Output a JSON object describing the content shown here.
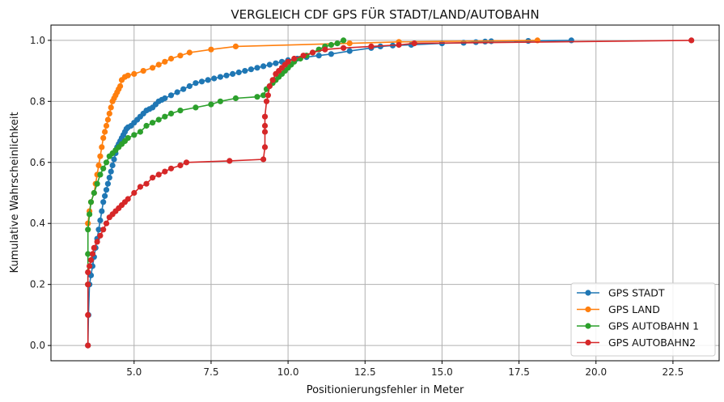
{
  "chart_data": {
    "type": "line",
    "title": "VERGLEICH CDF GPS FÜR STADT/LAND/AUTOBAHN",
    "xlabel": "Positionierungsfehler in Meter",
    "ylabel": "Kumulative Wahrscheinlichkeit",
    "xlim": [
      2.3,
      24.0
    ],
    "ylim": [
      -0.05,
      1.05
    ],
    "xticks": [
      5.0,
      7.5,
      10.0,
      12.5,
      15.0,
      17.5,
      20.0,
      22.5
    ],
    "xtick_labels": [
      "5.0",
      "7.5",
      "10.0",
      "12.5",
      "15.0",
      "17.5",
      "20.0",
      "22.5"
    ],
    "yticks": [
      0.0,
      0.2,
      0.4,
      0.6,
      0.8,
      1.0
    ],
    "ytick_labels": [
      "0.0",
      "0.2",
      "0.4",
      "0.6",
      "0.8",
      "1.0"
    ],
    "grid": true,
    "legend_position": "bottom-right",
    "marker": "circle",
    "series": [
      {
        "name": "GPS STADT",
        "color": "#1f77b4",
        "x": [
          3.5,
          3.52,
          3.55,
          3.6,
          3.65,
          3.7,
          3.75,
          3.8,
          3.85,
          3.9,
          3.95,
          4.0,
          4.05,
          4.1,
          4.15,
          4.2,
          4.25,
          4.3,
          4.35,
          4.4,
          4.45,
          4.5,
          4.55,
          4.6,
          4.65,
          4.7,
          4.75,
          4.8,
          4.9,
          5.0,
          5.1,
          5.2,
          5.3,
          5.4,
          5.5,
          5.6,
          5.7,
          5.8,
          5.9,
          6.0,
          6.2,
          6.4,
          6.6,
          6.8,
          7.0,
          7.2,
          7.4,
          7.6,
          7.8,
          8.0,
          8.2,
          8.4,
          8.6,
          8.8,
          9.0,
          9.2,
          9.4,
          9.6,
          9.8,
          10.0,
          10.3,
          10.6,
          11.0,
          11.4,
          12.0,
          12.7,
          13.0,
          13.4,
          14.0,
          15.0,
          15.7,
          16.1,
          16.4,
          16.6,
          17.8,
          19.2
        ],
        "y": [
          0.0,
          0.1,
          0.2,
          0.23,
          0.26,
          0.29,
          0.32,
          0.35,
          0.38,
          0.41,
          0.44,
          0.47,
          0.49,
          0.51,
          0.53,
          0.55,
          0.57,
          0.59,
          0.61,
          0.63,
          0.65,
          0.66,
          0.67,
          0.68,
          0.69,
          0.7,
          0.71,
          0.715,
          0.72,
          0.73,
          0.74,
          0.75,
          0.76,
          0.77,
          0.775,
          0.78,
          0.79,
          0.8,
          0.805,
          0.81,
          0.82,
          0.83,
          0.84,
          0.85,
          0.86,
          0.865,
          0.87,
          0.875,
          0.88,
          0.885,
          0.89,
          0.895,
          0.9,
          0.905,
          0.91,
          0.915,
          0.92,
          0.925,
          0.93,
          0.935,
          0.94,
          0.945,
          0.95,
          0.955,
          0.965,
          0.975,
          0.98,
          0.983,
          0.985,
          0.99,
          0.992,
          0.994,
          0.996,
          0.997,
          0.998,
          1.0
        ]
      },
      {
        "name": "GPS LAND",
        "color": "#ff7f0e",
        "x": [
          3.5,
          3.55,
          3.6,
          3.7,
          3.75,
          3.8,
          3.85,
          3.9,
          3.95,
          4.0,
          4.05,
          4.1,
          4.15,
          4.2,
          4.25,
          4.3,
          4.35,
          4.4,
          4.45,
          4.5,
          4.55,
          4.6,
          4.7,
          4.8,
          5.0,
          5.3,
          5.6,
          5.8,
          6.0,
          6.2,
          6.5,
          6.8,
          7.5,
          8.3,
          12.0,
          13.6,
          18.1
        ],
        "y": [
          0.4,
          0.44,
          0.47,
          0.5,
          0.53,
          0.56,
          0.59,
          0.62,
          0.65,
          0.68,
          0.7,
          0.72,
          0.74,
          0.76,
          0.78,
          0.8,
          0.81,
          0.82,
          0.83,
          0.84,
          0.85,
          0.87,
          0.88,
          0.885,
          0.89,
          0.9,
          0.91,
          0.92,
          0.93,
          0.94,
          0.95,
          0.96,
          0.97,
          0.98,
          0.99,
          0.995,
          1.0
        ]
      },
      {
        "name": "GPS AUTOBAHN 1",
        "color": "#2ca02c",
        "x": [
          3.5,
          3.5,
          3.5,
          3.55,
          3.6,
          3.7,
          3.8,
          3.9,
          4.0,
          4.1,
          4.2,
          4.3,
          4.4,
          4.5,
          4.6,
          4.7,
          4.8,
          5.0,
          5.2,
          5.4,
          5.6,
          5.8,
          6.0,
          6.2,
          6.5,
          7.0,
          7.5,
          7.8,
          8.3,
          9.0,
          9.2,
          9.3,
          9.4,
          9.5,
          9.6,
          9.7,
          9.8,
          9.9,
          10.0,
          10.1,
          10.2,
          10.4,
          10.6,
          10.8,
          11.0,
          11.2,
          11.4,
          11.6,
          11.8
        ],
        "y": [
          0.2,
          0.3,
          0.38,
          0.43,
          0.47,
          0.5,
          0.53,
          0.56,
          0.58,
          0.6,
          0.62,
          0.63,
          0.64,
          0.65,
          0.66,
          0.67,
          0.68,
          0.69,
          0.7,
          0.72,
          0.73,
          0.74,
          0.75,
          0.76,
          0.77,
          0.78,
          0.79,
          0.8,
          0.81,
          0.815,
          0.82,
          0.84,
          0.85,
          0.86,
          0.87,
          0.88,
          0.89,
          0.9,
          0.91,
          0.92,
          0.93,
          0.94,
          0.95,
          0.96,
          0.97,
          0.98,
          0.985,
          0.99,
          1.0
        ]
      },
      {
        "name": "GPS AUTOBAHN2",
        "color": "#d62728",
        "x": [
          3.5,
          3.5,
          3.5,
          3.5,
          3.55,
          3.6,
          3.65,
          3.7,
          3.8,
          3.9,
          4.0,
          4.1,
          4.2,
          4.3,
          4.4,
          4.5,
          4.6,
          4.7,
          4.8,
          5.0,
          5.2,
          5.4,
          5.6,
          5.8,
          6.0,
          6.2,
          6.5,
          6.7,
          8.1,
          9.2,
          9.25,
          9.25,
          9.25,
          9.25,
          9.3,
          9.35,
          9.4,
          9.5,
          9.6,
          9.7,
          9.8,
          9.9,
          10.0,
          10.2,
          10.5,
          10.8,
          11.2,
          11.8,
          12.7,
          13.6,
          14.1,
          23.1
        ],
        "y": [
          0.0,
          0.1,
          0.2,
          0.24,
          0.26,
          0.28,
          0.3,
          0.32,
          0.34,
          0.36,
          0.38,
          0.4,
          0.42,
          0.43,
          0.44,
          0.45,
          0.46,
          0.47,
          0.48,
          0.5,
          0.52,
          0.53,
          0.55,
          0.56,
          0.57,
          0.58,
          0.59,
          0.6,
          0.605,
          0.61,
          0.65,
          0.7,
          0.72,
          0.75,
          0.8,
          0.82,
          0.85,
          0.87,
          0.89,
          0.9,
          0.91,
          0.92,
          0.93,
          0.94,
          0.95,
          0.96,
          0.97,
          0.975,
          0.98,
          0.985,
          0.99,
          1.0
        ]
      }
    ]
  }
}
